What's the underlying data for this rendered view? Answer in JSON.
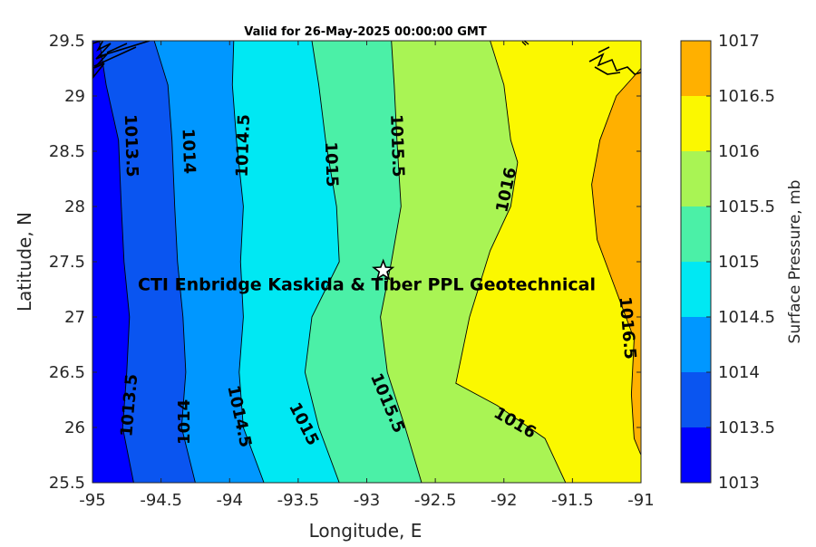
{
  "chart_data": {
    "type": "contour",
    "title": "Valid for 26-May-2025 00:00:00 GMT",
    "xlabel": "Longitude, E",
    "ylabel": "Latitude, N",
    "colorbar_label": "Surface Pressure, mb",
    "xlim": [
      -95,
      -91
    ],
    "ylim": [
      25.5,
      29.5
    ],
    "xticks": [
      "-95",
      "-94.5",
      "-94",
      "-93.5",
      "-93",
      "-92.5",
      "-92",
      "-91.5",
      "-91"
    ],
    "yticks": [
      "25.5",
      "26",
      "26.5",
      "27",
      "27.5",
      "28",
      "28.5",
      "29",
      "29.5"
    ],
    "colorbar_ticks": [
      "1013",
      "1013.5",
      "1014",
      "1014.5",
      "1015",
      "1015.5",
      "1016",
      "1016.5",
      "1017"
    ],
    "levels": [
      1013,
      1013.5,
      1014,
      1014.5,
      1015,
      1015.5,
      1016,
      1016.5,
      1017
    ],
    "level_colors": [
      "#0000ff",
      "#0a55f0",
      "#0097ff",
      "#00e8f3",
      "#4bf0a7",
      "#a9f454",
      "#fbf800",
      "#ffb000",
      "#ff5900"
    ],
    "contours": [
      {
        "level": 1013.5,
        "label": "1013.5",
        "points": [
          [
            -94.95,
            29.5
          ],
          [
            -94.9,
            29.1
          ],
          [
            -94.81,
            28.6
          ],
          [
            -94.79,
            28.0
          ],
          [
            -94.77,
            27.5
          ],
          [
            -94.73,
            27.0
          ],
          [
            -94.75,
            26.5
          ],
          [
            -94.78,
            26.0
          ],
          [
            -94.7,
            25.5
          ]
        ]
      },
      {
        "level": 1014,
        "label": "1014",
        "points": [
          [
            -94.55,
            29.5
          ],
          [
            -94.45,
            29.1
          ],
          [
            -94.42,
            28.6
          ],
          [
            -94.4,
            28.0
          ],
          [
            -94.38,
            27.5
          ],
          [
            -94.34,
            27.0
          ],
          [
            -94.32,
            26.5
          ],
          [
            -94.35,
            26.0
          ],
          [
            -94.25,
            25.5
          ]
        ]
      },
      {
        "level": 1014.5,
        "label": "1014.5",
        "points": [
          [
            -93.97,
            29.5
          ],
          [
            -93.98,
            29.1
          ],
          [
            -93.95,
            28.6
          ],
          [
            -93.9,
            28.0
          ],
          [
            -93.92,
            27.5
          ],
          [
            -93.9,
            27.0
          ],
          [
            -93.93,
            26.5
          ],
          [
            -93.9,
            26.0
          ],
          [
            -93.75,
            25.5
          ]
        ]
      },
      {
        "level": 1015,
        "label": "1015",
        "points": [
          [
            -93.4,
            29.5
          ],
          [
            -93.35,
            29.1
          ],
          [
            -93.3,
            28.6
          ],
          [
            -93.22,
            28.0
          ],
          [
            -93.2,
            27.5
          ],
          [
            -93.4,
            27.0
          ],
          [
            -93.45,
            26.5
          ],
          [
            -93.35,
            26.0
          ],
          [
            -93.2,
            25.5
          ]
        ]
      },
      {
        "level": 1015.5,
        "label": "1015.5",
        "points": [
          [
            -92.82,
            29.5
          ],
          [
            -92.8,
            29.1
          ],
          [
            -92.78,
            28.6
          ],
          [
            -92.75,
            28.0
          ],
          [
            -92.82,
            27.5
          ],
          [
            -92.9,
            27.0
          ],
          [
            -92.85,
            26.5
          ],
          [
            -92.72,
            26.0
          ],
          [
            -92.6,
            25.5
          ]
        ]
      },
      {
        "level": 1016,
        "label": "1016",
        "points": [
          [
            -92.1,
            29.5
          ],
          [
            -92.0,
            29.1
          ],
          [
            -91.95,
            28.6
          ],
          [
            -91.9,
            28.4
          ],
          [
            -91.95,
            28.0
          ],
          [
            -92.1,
            27.6
          ],
          [
            -92.25,
            27.0
          ],
          [
            -92.35,
            26.4
          ],
          [
            -92.05,
            26.2
          ],
          [
            -91.7,
            25.9
          ],
          [
            -91.55,
            25.5
          ]
        ]
      },
      {
        "level": 1016.5,
        "label": "1016.5",
        "points": [
          [
            -91.0,
            29.25
          ],
          [
            -91.18,
            29.0
          ],
          [
            -91.3,
            28.6
          ],
          [
            -91.36,
            28.2
          ],
          [
            -91.32,
            27.7
          ],
          [
            -91.2,
            27.3
          ],
          [
            -91.05,
            26.8
          ],
          [
            -91.07,
            26.3
          ],
          [
            -91.05,
            25.9
          ],
          [
            -91.0,
            25.75
          ]
        ]
      }
    ],
    "contour_labels": [
      {
        "text": "1013.5",
        "lon": -94.72,
        "lat": 28.55,
        "angle": 88
      },
      {
        "text": "1014",
        "lon": -94.3,
        "lat": 28.5,
        "angle": 88
      },
      {
        "text": "1014.5",
        "lon": -93.9,
        "lat": 28.55,
        "angle": -88
      },
      {
        "text": "1015",
        "lon": -93.26,
        "lat": 28.38,
        "angle": 88
      },
      {
        "text": "1015.5",
        "lon": -92.78,
        "lat": 28.55,
        "angle": 88
      },
      {
        "text": "1016",
        "lon": -91.98,
        "lat": 28.15,
        "angle": -78
      },
      {
        "text": "1016.5",
        "lon": -91.1,
        "lat": 26.9,
        "angle": 85
      },
      {
        "text": "1013.5",
        "lon": -94.73,
        "lat": 26.2,
        "angle": -85
      },
      {
        "text": "1014",
        "lon": -94.33,
        "lat": 26.05,
        "angle": -90
      },
      {
        "text": "1014.5",
        "lon": -93.93,
        "lat": 26.1,
        "angle": 78
      },
      {
        "text": "1015",
        "lon": -93.46,
        "lat": 26.03,
        "angle": 63
      },
      {
        "text": "1015.5",
        "lon": -92.85,
        "lat": 26.22,
        "angle": 67
      },
      {
        "text": "1016",
        "lon": -91.92,
        "lat": 26.04,
        "angle": 30
      }
    ],
    "marker": {
      "symbol": "star",
      "lon": -92.88,
      "lat": 27.42
    },
    "annotation": {
      "text": "CTI Enbridge  Kaskida & Tiber PPL Geotechnical",
      "lon": -93.0,
      "lat": 27.3
    }
  }
}
